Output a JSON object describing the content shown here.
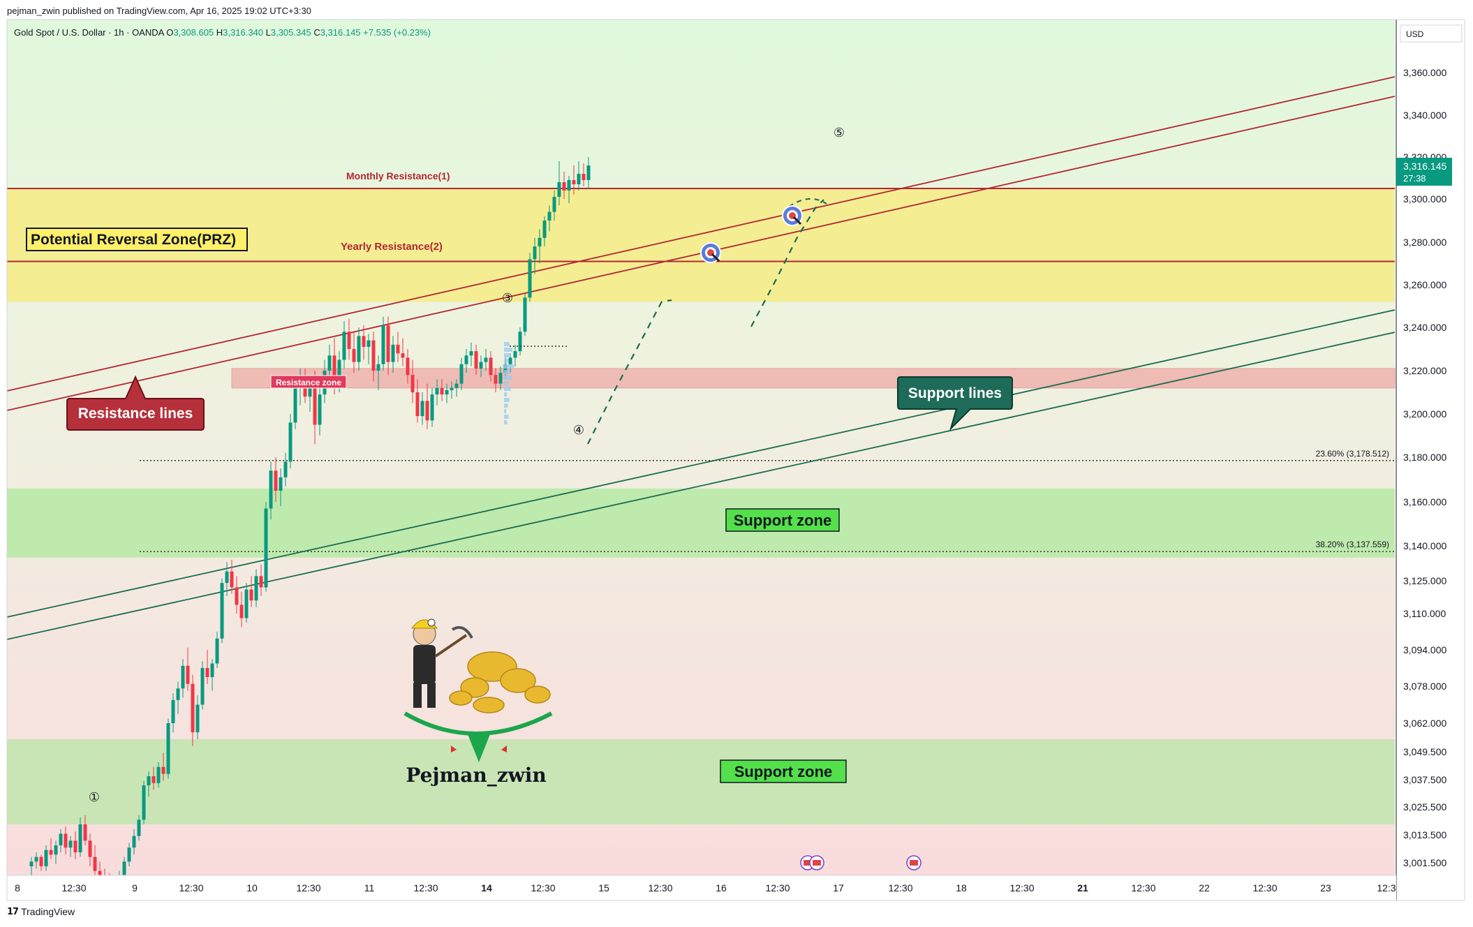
{
  "header": {
    "published": "pejman_zwin published on TradingView.com, Apr 16, 2025 19:02 UTC+3:30"
  },
  "symbol_bar": {
    "symbol": "Gold Spot / U.S. Dollar · 1h · OANDA",
    "o_label": "O",
    "o_value": "3,308.605",
    "h_label": "H",
    "h_value": "3,316.340",
    "l_label": "L",
    "l_value": "3,305.345",
    "c_label": "C",
    "c_value": "3,316.145",
    "change": "+7.535 (+0.23%)"
  },
  "price_axis": {
    "currency": "USD",
    "ticks": [
      "3,360.000",
      "3,340.000",
      "3,320.000",
      "3,300.000",
      "3,280.000",
      "3,260.000",
      "3,240.000",
      "3,220.000",
      "3,200.000",
      "3,180.000",
      "3,160.000",
      "3,140.000",
      "3,125.000",
      "3,110.000",
      "3,094.000",
      "3,078.000",
      "3,062.000",
      "3,049.500",
      "3,037.500",
      "3,025.500",
      "3,013.500",
      "3,001.500"
    ],
    "current_price": "3,316.145",
    "countdown": "27:38"
  },
  "time_axis": {
    "ticks": [
      "8",
      "12:30",
      "9",
      "12:30",
      "10",
      "12:30",
      "11",
      "12:30",
      "14",
      "12:30",
      "15",
      "12:30",
      "16",
      "12:30",
      "17",
      "12:30",
      "18",
      "12:30",
      "21",
      "12:30",
      "22",
      "12:30",
      "23",
      "12:3"
    ]
  },
  "annotations": {
    "prz": "Potential Reversal Zone(PRZ)",
    "monthly_resistance": "Monthly Resistance(1)",
    "yearly_resistance": "Yearly Resistance(2)",
    "resistance_lines": "Resistance lines",
    "resistance_zone": "Resistance zone",
    "support_lines": "Support lines",
    "support_zone_1": "Support zone",
    "support_zone_2": "Support zone",
    "fib_236": "23.60% (3,178.512)",
    "fib_382": "38.20% (3,137.559)",
    "wave_1": "①",
    "wave_3": "③",
    "wave_4": "④",
    "wave_5": "⑤",
    "author": "Pejman_zwin"
  },
  "footer": {
    "brand": "TradingView"
  },
  "colors": {
    "up": "#089981",
    "down": "#f23645",
    "prz_fill": "#f5ec8a",
    "resistance_line": "#b22833",
    "support_line": "#1b6b50",
    "support_zone_fill": "#b6eaa3"
  },
  "chart_data": {
    "type": "candlestick",
    "instrument": "Gold Spot / U.S. Dollar",
    "timeframe": "1h",
    "levels": {
      "monthly_resistance": 3305,
      "yearly_resistance": 3271,
      "prz": [
        3252,
        3305
      ],
      "resistance_zone": [
        3212,
        3221
      ],
      "support_zone_1": [
        3135,
        3166
      ],
      "support_zone_2": [
        3018,
        3055
      ],
      "fib_23_6": 3178.512,
      "fib_38_2": 3137.559
    },
    "candles": [
      {
        "o": 3000,
        "h": 3004,
        "l": 2996,
        "c": 3002
      },
      {
        "o": 3002,
        "h": 3006,
        "l": 2999,
        "c": 3004
      },
      {
        "o": 3004,
        "h": 3005,
        "l": 2998,
        "c": 3000
      },
      {
        "o": 3000,
        "h": 3009,
        "l": 2998,
        "c": 3007
      },
      {
        "o": 3007,
        "h": 3012,
        "l": 3003,
        "c": 3005
      },
      {
        "o": 3005,
        "h": 3011,
        "l": 3001,
        "c": 3009
      },
      {
        "o": 3009,
        "h": 3016,
        "l": 3006,
        "c": 3014
      },
      {
        "o": 3014,
        "h": 3017,
        "l": 3005,
        "c": 3008
      },
      {
        "o": 3008,
        "h": 3013,
        "l": 3004,
        "c": 3011
      },
      {
        "o": 3011,
        "h": 3015,
        "l": 3003,
        "c": 3006
      },
      {
        "o": 3006,
        "h": 3021,
        "l": 3004,
        "c": 3018
      },
      {
        "o": 3018,
        "h": 3022,
        "l": 3009,
        "c": 3011
      },
      {
        "o": 3011,
        "h": 3014,
        "l": 3000,
        "c": 3004
      },
      {
        "o": 3004,
        "h": 3009,
        "l": 2995,
        "c": 2998
      },
      {
        "o": 2998,
        "h": 3002,
        "l": 2993,
        "c": 2996
      },
      {
        "o": 2996,
        "h": 2999,
        "l": 2990,
        "c": 2993
      },
      {
        "o": 2993,
        "h": 2997,
        "l": 2988,
        "c": 2991
      },
      {
        "o": 2991,
        "h": 2995,
        "l": 2987,
        "c": 2993
      },
      {
        "o": 2993,
        "h": 2998,
        "l": 2990,
        "c": 2996
      },
      {
        "o": 2996,
        "h": 3004,
        "l": 2994,
        "c": 3002
      },
      {
        "o": 3002,
        "h": 3010,
        "l": 3000,
        "c": 3008
      },
      {
        "o": 3008,
        "h": 3016,
        "l": 3005,
        "c": 3013
      },
      {
        "o": 3013,
        "h": 3022,
        "l": 3011,
        "c": 3020
      },
      {
        "o": 3020,
        "h": 3037,
        "l": 3018,
        "c": 3035
      },
      {
        "o": 3035,
        "h": 3041,
        "l": 3030,
        "c": 3039
      },
      {
        "o": 3039,
        "h": 3043,
        "l": 3033,
        "c": 3036
      },
      {
        "o": 3036,
        "h": 3045,
        "l": 3034,
        "c": 3043
      },
      {
        "o": 3043,
        "h": 3049,
        "l": 3037,
        "c": 3040
      },
      {
        "o": 3040,
        "h": 3064,
        "l": 3038,
        "c": 3062
      },
      {
        "o": 3062,
        "h": 3075,
        "l": 3058,
        "c": 3072
      },
      {
        "o": 3072,
        "h": 3080,
        "l": 3066,
        "c": 3077
      },
      {
        "o": 3077,
        "h": 3090,
        "l": 3073,
        "c": 3087
      },
      {
        "o": 3087,
        "h": 3095,
        "l": 3076,
        "c": 3079
      },
      {
        "o": 3079,
        "h": 3083,
        "l": 3052,
        "c": 3058
      },
      {
        "o": 3058,
        "h": 3074,
        "l": 3055,
        "c": 3070
      },
      {
        "o": 3070,
        "h": 3089,
        "l": 3068,
        "c": 3086
      },
      {
        "o": 3086,
        "h": 3094,
        "l": 3079,
        "c": 3082
      },
      {
        "o": 3082,
        "h": 3090,
        "l": 3076,
        "c": 3088
      },
      {
        "o": 3088,
        "h": 3102,
        "l": 3086,
        "c": 3099
      },
      {
        "o": 3099,
        "h": 3126,
        "l": 3097,
        "c": 3124
      },
      {
        "o": 3124,
        "h": 3133,
        "l": 3118,
        "c": 3129
      },
      {
        "o": 3129,
        "h": 3134,
        "l": 3119,
        "c": 3122
      },
      {
        "o": 3122,
        "h": 3127,
        "l": 3110,
        "c": 3114
      },
      {
        "o": 3114,
        "h": 3120,
        "l": 3104,
        "c": 3108
      },
      {
        "o": 3108,
        "h": 3124,
        "l": 3106,
        "c": 3121
      },
      {
        "o": 3121,
        "h": 3127,
        "l": 3113,
        "c": 3116
      },
      {
        "o": 3116,
        "h": 3130,
        "l": 3113,
        "c": 3127
      },
      {
        "o": 3127,
        "h": 3132,
        "l": 3118,
        "c": 3122
      },
      {
        "o": 3122,
        "h": 3160,
        "l": 3120,
        "c": 3157
      },
      {
        "o": 3157,
        "h": 3178,
        "l": 3152,
        "c": 3174
      },
      {
        "o": 3174,
        "h": 3180,
        "l": 3160,
        "c": 3165
      },
      {
        "o": 3165,
        "h": 3175,
        "l": 3158,
        "c": 3171
      },
      {
        "o": 3171,
        "h": 3182,
        "l": 3167,
        "c": 3178
      },
      {
        "o": 3178,
        "h": 3200,
        "l": 3175,
        "c": 3196
      },
      {
        "o": 3196,
        "h": 3216,
        "l": 3193,
        "c": 3212
      },
      {
        "o": 3212,
        "h": 3221,
        "l": 3204,
        "c": 3216
      },
      {
        "o": 3216,
        "h": 3221,
        "l": 3205,
        "c": 3208
      },
      {
        "o": 3208,
        "h": 3218,
        "l": 3201,
        "c": 3214
      },
      {
        "o": 3214,
        "h": 3220,
        "l": 3186,
        "c": 3195
      },
      {
        "o": 3195,
        "h": 3212,
        "l": 3190,
        "c": 3209
      },
      {
        "o": 3209,
        "h": 3225,
        "l": 3205,
        "c": 3220
      },
      {
        "o": 3220,
        "h": 3232,
        "l": 3215,
        "c": 3227
      },
      {
        "o": 3227,
        "h": 3235,
        "l": 3209,
        "c": 3213
      },
      {
        "o": 3213,
        "h": 3229,
        "l": 3210,
        "c": 3225
      },
      {
        "o": 3225,
        "h": 3243,
        "l": 3221,
        "c": 3238
      },
      {
        "o": 3238,
        "h": 3244,
        "l": 3225,
        "c": 3230
      },
      {
        "o": 3230,
        "h": 3238,
        "l": 3219,
        "c": 3224
      },
      {
        "o": 3224,
        "h": 3240,
        "l": 3220,
        "c": 3236
      },
      {
        "o": 3236,
        "h": 3241,
        "l": 3225,
        "c": 3231
      },
      {
        "o": 3231,
        "h": 3237,
        "l": 3223,
        "c": 3234
      },
      {
        "o": 3234,
        "h": 3238,
        "l": 3215,
        "c": 3220
      },
      {
        "o": 3220,
        "h": 3227,
        "l": 3211,
        "c": 3223
      },
      {
        "o": 3223,
        "h": 3245,
        "l": 3220,
        "c": 3241
      },
      {
        "o": 3241,
        "h": 3245,
        "l": 3218,
        "c": 3224
      },
      {
        "o": 3224,
        "h": 3236,
        "l": 3219,
        "c": 3232
      },
      {
        "o": 3232,
        "h": 3238,
        "l": 3224,
        "c": 3228
      },
      {
        "o": 3228,
        "h": 3235,
        "l": 3222,
        "c": 3226
      },
      {
        "o": 3226,
        "h": 3230,
        "l": 3214,
        "c": 3218
      },
      {
        "o": 3218,
        "h": 3225,
        "l": 3205,
        "c": 3210
      },
      {
        "o": 3210,
        "h": 3216,
        "l": 3196,
        "c": 3199
      },
      {
        "o": 3199,
        "h": 3210,
        "l": 3195,
        "c": 3206
      },
      {
        "o": 3206,
        "h": 3214,
        "l": 3193,
        "c": 3197
      },
      {
        "o": 3197,
        "h": 3212,
        "l": 3194,
        "c": 3209
      },
      {
        "o": 3209,
        "h": 3216,
        "l": 3204,
        "c": 3212
      },
      {
        "o": 3212,
        "h": 3216,
        "l": 3206,
        "c": 3209
      },
      {
        "o": 3209,
        "h": 3214,
        "l": 3205,
        "c": 3211
      },
      {
        "o": 3211,
        "h": 3215,
        "l": 3207,
        "c": 3212
      },
      {
        "o": 3212,
        "h": 3216,
        "l": 3208,
        "c": 3214
      },
      {
        "o": 3214,
        "h": 3226,
        "l": 3211,
        "c": 3223
      },
      {
        "o": 3223,
        "h": 3230,
        "l": 3219,
        "c": 3227
      },
      {
        "o": 3227,
        "h": 3233,
        "l": 3222,
        "c": 3229
      },
      {
        "o": 3229,
        "h": 3232,
        "l": 3218,
        "c": 3221
      },
      {
        "o": 3221,
        "h": 3227,
        "l": 3217,
        "c": 3224
      },
      {
        "o": 3224,
        "h": 3230,
        "l": 3220,
        "c": 3226
      },
      {
        "o": 3226,
        "h": 3229,
        "l": 3215,
        "c": 3218
      },
      {
        "o": 3218,
        "h": 3221,
        "l": 3210,
        "c": 3214
      },
      {
        "o": 3214,
        "h": 3222,
        "l": 3211,
        "c": 3219
      },
      {
        "o": 3219,
        "h": 3226,
        "l": 3216,
        "c": 3223
      },
      {
        "o": 3223,
        "h": 3228,
        "l": 3219,
        "c": 3226
      },
      {
        "o": 3226,
        "h": 3232,
        "l": 3222,
        "c": 3229
      },
      {
        "o": 3229,
        "h": 3240,
        "l": 3227,
        "c": 3238
      },
      {
        "o": 3238,
        "h": 3256,
        "l": 3236,
        "c": 3254
      },
      {
        "o": 3254,
        "h": 3275,
        "l": 3252,
        "c": 3272
      },
      {
        "o": 3272,
        "h": 3282,
        "l": 3265,
        "c": 3278
      },
      {
        "o": 3278,
        "h": 3286,
        "l": 3270,
        "c": 3282
      },
      {
        "o": 3282,
        "h": 3292,
        "l": 3278,
        "c": 3290
      },
      {
        "o": 3290,
        "h": 3297,
        "l": 3285,
        "c": 3294
      },
      {
        "o": 3294,
        "h": 3304,
        "l": 3290,
        "c": 3301
      },
      {
        "o": 3301,
        "h": 3318,
        "l": 3297,
        "c": 3308
      },
      {
        "o": 3308,
        "h": 3313,
        "l": 3300,
        "c": 3304
      },
      {
        "o": 3304,
        "h": 3311,
        "l": 3298,
        "c": 3309
      },
      {
        "o": 3309,
        "h": 3316,
        "l": 3302,
        "c": 3307
      },
      {
        "o": 3307,
        "h": 3318,
        "l": 3304,
        "c": 3312
      },
      {
        "o": 3312,
        "h": 3317,
        "l": 3306,
        "c": 3309
      },
      {
        "o": 3309,
        "h": 3320,
        "l": 3305,
        "c": 3316
      }
    ]
  }
}
